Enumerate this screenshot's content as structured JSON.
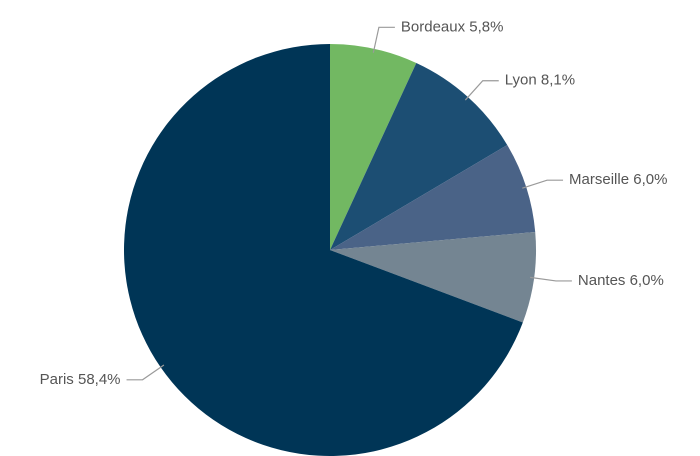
{
  "chart_data": {
    "type": "pie",
    "categories": [
      "Bordeaux",
      "Lyon",
      "Marseille",
      "Nantes",
      "Paris"
    ],
    "values": [
      5.8,
      8.1,
      6.0,
      6.0,
      58.4
    ],
    "value_labels": [
      "5,8%",
      "8,1%",
      "6,0%",
      "6,0%",
      "58,4%"
    ],
    "colors": [
      "#72b862",
      "#1c4e73",
      "#4a6387",
      "#748592",
      "#003556"
    ]
  }
}
